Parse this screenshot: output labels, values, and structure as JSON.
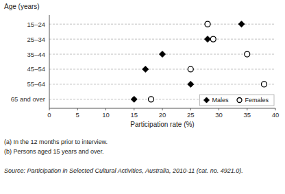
{
  "chart_data": {
    "type": "dot",
    "orientation": "horizontal",
    "categories": [
      "15–24",
      "25–34",
      "35–44",
      "45–54",
      "55–64",
      "65 and over"
    ],
    "series": [
      {
        "name": "Males",
        "color": "#000000",
        "marker": "diamond",
        "values": [
          34,
          28,
          20,
          17,
          25,
          15
        ]
      },
      {
        "name": "Females",
        "color": "#000000",
        "marker": "circle",
        "values": [
          28,
          29,
          35,
          25,
          38,
          18
        ]
      }
    ],
    "x_label": "Participation rate (%)",
    "y_label": "Age (years)",
    "xlim": [
      0,
      40
    ],
    "xticks": [
      0,
      5,
      10,
      15,
      20,
      25,
      30,
      35,
      40
    ],
    "grid": true,
    "legend": "lower right",
    "annotations": [
      "(a) In the 12 months prior to interview.",
      "(b) Persons aged 15 years and over.",
      "Source: Participation in Selected Cultural Activities, Australia, 2010-11 (cat. no. 4921.0)."
    ]
  }
}
